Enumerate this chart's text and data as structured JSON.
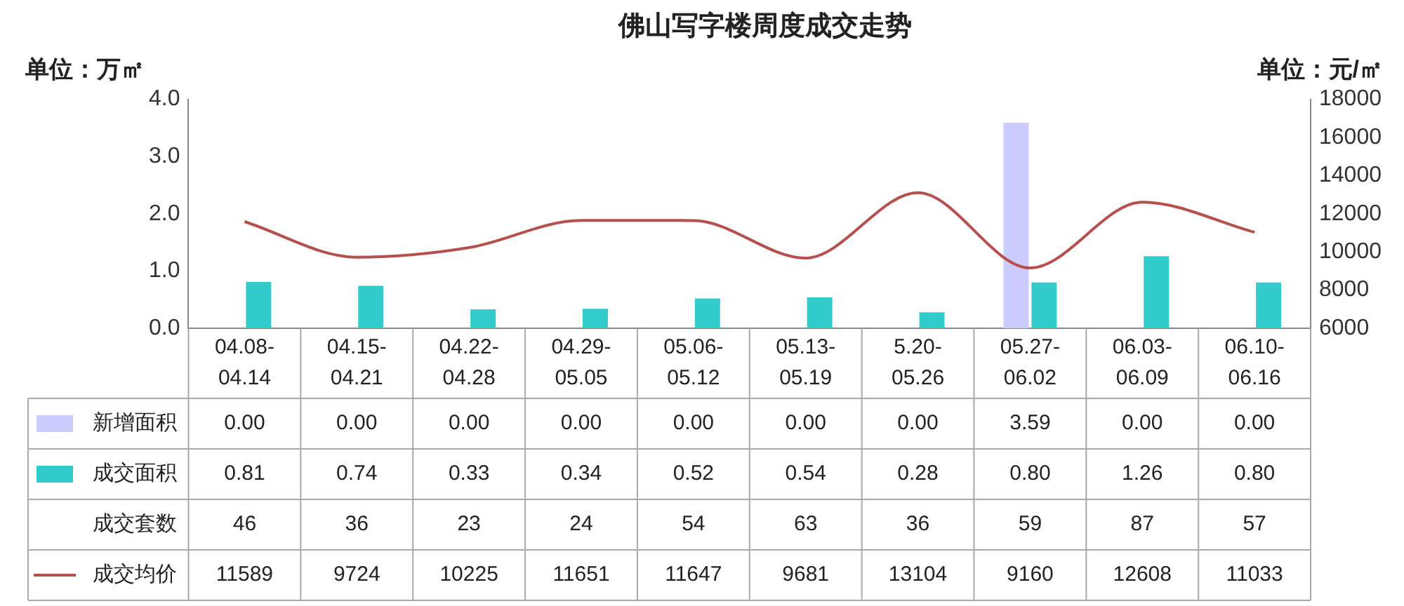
{
  "chart_data": {
    "type": "bar",
    "title": "佛山写字楼周度成交走势",
    "ylabel": "单位：万㎡",
    "y2label": "单位：元/㎡",
    "categories": [
      "04.08-04.14",
      "04.15-04.21",
      "04.22-04.28",
      "04.29-05.05",
      "05.06-05.12",
      "05.13-05.19",
      "5.20-05.26",
      "05.27-06.02",
      "06.03-06.09",
      "06.10-06.16"
    ],
    "series": [
      {
        "name": "新增面积",
        "color": "#ccccff",
        "values": [
          0,
          0,
          0,
          0,
          0,
          0,
          0,
          3.59,
          0,
          0
        ],
        "value_labels": [
          "0.00",
          "0.00",
          "0.00",
          "0.00",
          "0.00",
          "0.00",
          "0.00",
          "3.59",
          "0.00",
          "0.00"
        ]
      },
      {
        "name": "成交面积",
        "color": "#33cccc",
        "values": [
          0.81,
          0.74,
          0.33,
          0.34,
          0.52,
          0.54,
          0.28,
          0.8,
          1.26,
          0.8
        ],
        "value_labels": [
          "0.81",
          "0.74",
          "0.33",
          "0.34",
          "0.52",
          "0.54",
          "0.28",
          "0.80",
          "1.26",
          "0.80"
        ]
      },
      {
        "name": "成交套数",
        "type": "other",
        "values": [
          null,
          null,
          null,
          null,
          null,
          null,
          null,
          null,
          null,
          null
        ],
        "value_labels": [
          "46",
          "36",
          "23",
          "24",
          "54",
          "63",
          "36",
          "59",
          "87",
          "57"
        ]
      },
      {
        "name": "成交均价",
        "type": "line",
        "axis": "y2",
        "color": "#b5504f",
        "values": [
          11589,
          9724,
          10225,
          11651,
          11647,
          9681,
          13104,
          9160,
          12608,
          11033
        ],
        "value_labels": [
          "11589",
          "9724",
          "10225",
          "11651",
          "11647",
          "9681",
          "13104",
          "9160",
          "12608",
          "11033"
        ]
      }
    ],
    "ylim": [
      0,
      4
    ],
    "yticks": [
      {
        "value": 0,
        "label": "0.0"
      },
      {
        "value": 1,
        "label": "1.0"
      },
      {
        "value": 2,
        "label": "2.0"
      },
      {
        "value": 3,
        "label": "3.0"
      },
      {
        "value": 4,
        "label": "4.0"
      }
    ],
    "y2lim": [
      6000,
      18000
    ],
    "y2ticks": [
      6000,
      8000,
      10000,
      12000,
      14000,
      16000,
      18000
    ],
    "marker": "none",
    "line_style": "solid",
    "legend": "bottom left"
  }
}
